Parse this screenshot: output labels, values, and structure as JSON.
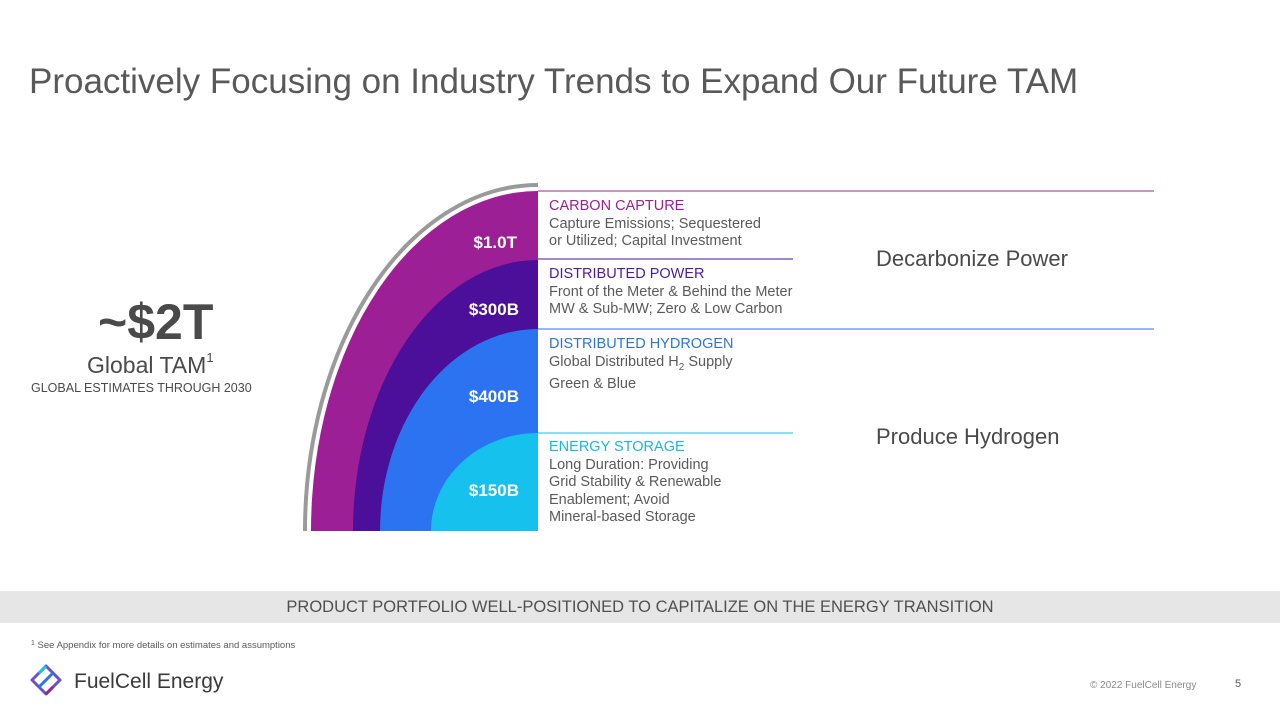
{
  "title": "Proactively Focusing on Industry Trends to Expand Our Future TAM",
  "tam": {
    "value": "~$2T",
    "label": "Global TAM",
    "label_superscript": "1",
    "subtitle": "GLOBAL ESTIMATES THROUGH 2030"
  },
  "segments": [
    {
      "value": "$1.0T",
      "heading": "CARBON CAPTURE",
      "description": [
        "Capture Emissions; Sequestered",
        "or Utilized; Capital Investment"
      ],
      "color": "#9c1f95"
    },
    {
      "value": "$300B",
      "heading": "DISTRIBUTED POWER",
      "description": [
        "Front of the Meter & Behind the Meter",
        "MW & Sub-MW; Zero & Low Carbon"
      ],
      "color": "#4b0f99"
    },
    {
      "value": "$400B",
      "heading": "DISTRIBUTED HYDROGEN",
      "description_prefix": "Global Distributed H",
      "description_subscript": "2",
      "description_suffix": " Supply",
      "description": [
        "Green & Blue"
      ],
      "color": "#2b73f0"
    },
    {
      "value": "$150B",
      "heading": "ENERGY STORAGE",
      "description": [
        "Long Duration: Providing",
        "Grid Stability & Renewable",
        "Enablement; Avoid",
        "Mineral-based Storage"
      ],
      "color": "#16c1ee"
    }
  ],
  "groups": [
    "Decarbonize Power",
    "Produce Hydrogen"
  ],
  "banner": "PRODUCT PORTFOLIO WELL-POSITIONED TO CAPITALIZE ON THE ENERGY TRANSITION",
  "footnote": {
    "marker": "1",
    "text": " See Appendix for more details on estimates and assumptions"
  },
  "footer": {
    "company": "FuelCell Energy",
    "copyright": "© 2022 FuelCell Energy",
    "page": "5"
  }
}
